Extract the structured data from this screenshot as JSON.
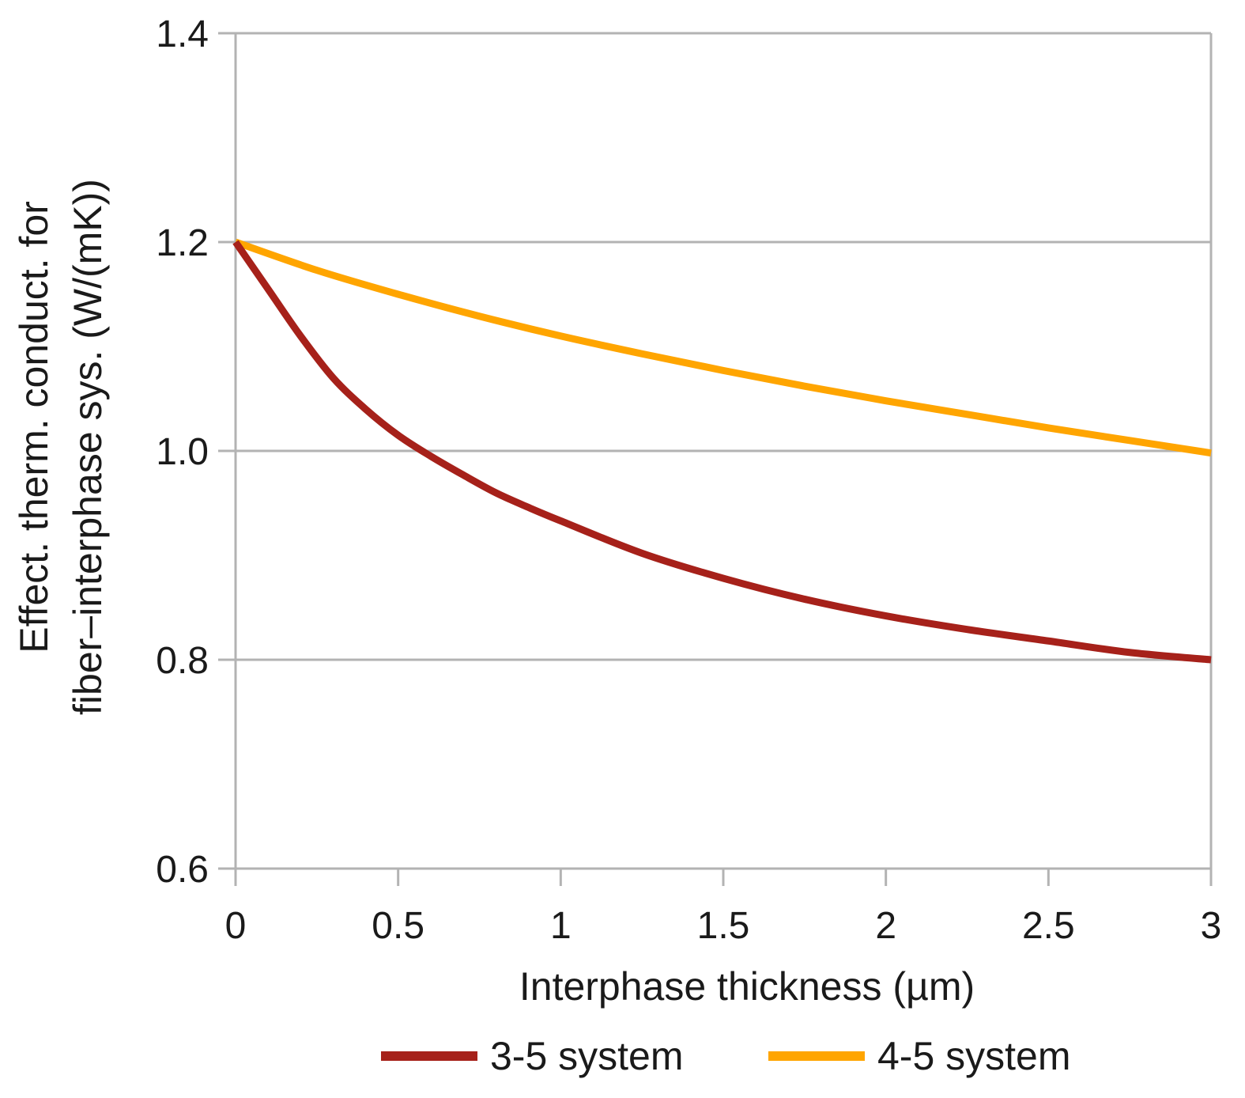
{
  "chart_data": {
    "type": "line",
    "title": "",
    "xlabel": "Interphase thickness (µm)",
    "ylabel_line1": "Effect. therm. conduct. for",
    "ylabel_line2": "fiber–interphase sys. (W/(mK))",
    "xlim": [
      0,
      3
    ],
    "ylim": [
      0.6,
      1.4
    ],
    "x_ticks": [
      0,
      0.5,
      1,
      1.5,
      2,
      2.5,
      3
    ],
    "x_tick_labels": [
      "0",
      "0.5",
      "1",
      "1.5",
      "2",
      "2.5",
      "3"
    ],
    "y_ticks": [
      0.6,
      0.8,
      1.0,
      1.2,
      1.4
    ],
    "y_tick_labels": [
      "0.6",
      "0.8",
      "1.0",
      "1.2",
      "1.4"
    ],
    "grid": "horizontal",
    "legend_position": "bottom",
    "series": [
      {
        "name": "3-5 system",
        "color": "#a6211a",
        "x": [
          0,
          0.1,
          0.2,
          0.3,
          0.4,
          0.5,
          0.6,
          0.7,
          0.8,
          0.9,
          1.0,
          1.25,
          1.5,
          1.75,
          2.0,
          2.25,
          2.5,
          2.75,
          3.0
        ],
        "y": [
          1.2,
          1.155,
          1.11,
          1.07,
          1.04,
          1.015,
          0.995,
          0.977,
          0.96,
          0.946,
          0.933,
          0.902,
          0.878,
          0.858,
          0.842,
          0.829,
          0.818,
          0.807,
          0.8
        ]
      },
      {
        "name": "4-5 system",
        "color": "#ffa500",
        "x": [
          0,
          0.25,
          0.5,
          0.75,
          1.0,
          1.25,
          1.5,
          1.75,
          2.0,
          2.25,
          2.5,
          2.75,
          3.0
        ],
        "y": [
          1.2,
          1.173,
          1.15,
          1.129,
          1.11,
          1.093,
          1.077,
          1.062,
          1.048,
          1.035,
          1.022,
          1.01,
          0.998
        ]
      }
    ]
  }
}
